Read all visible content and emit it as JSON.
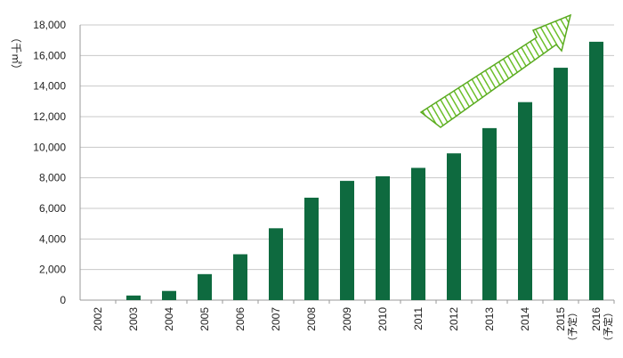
{
  "chart_data": {
    "type": "bar",
    "ylabel": "（千㎡）",
    "ylim": [
      0,
      18000
    ],
    "yticks": [
      0,
      2000,
      4000,
      6000,
      8000,
      10000,
      12000,
      14000,
      16000,
      18000
    ],
    "ytick_labels": [
      "0",
      "2,000",
      "4,000",
      "6,000",
      "8,000",
      "10,000",
      "12,000",
      "14,000",
      "16,000",
      "18,000"
    ],
    "categories": [
      "2002",
      "2003",
      "2004",
      "2005",
      "2006",
      "2007",
      "2008",
      "2009",
      "2010",
      "2011",
      "2012",
      "2013",
      "2014",
      "2015",
      "2016"
    ],
    "category_notes": [
      "",
      "",
      "",
      "",
      "",
      "",
      "",
      "",
      "",
      "",
      "",
      "",
      "",
      "（予定）",
      "（予定）"
    ],
    "values": [
      0,
      300,
      600,
      1700,
      3000,
      4700,
      6700,
      7800,
      8100,
      8650,
      9600,
      11250,
      12950,
      15200,
      16900
    ],
    "bar_color": "#0e6a3f",
    "arrow_color": "#6cbf2a",
    "grid": true
  }
}
